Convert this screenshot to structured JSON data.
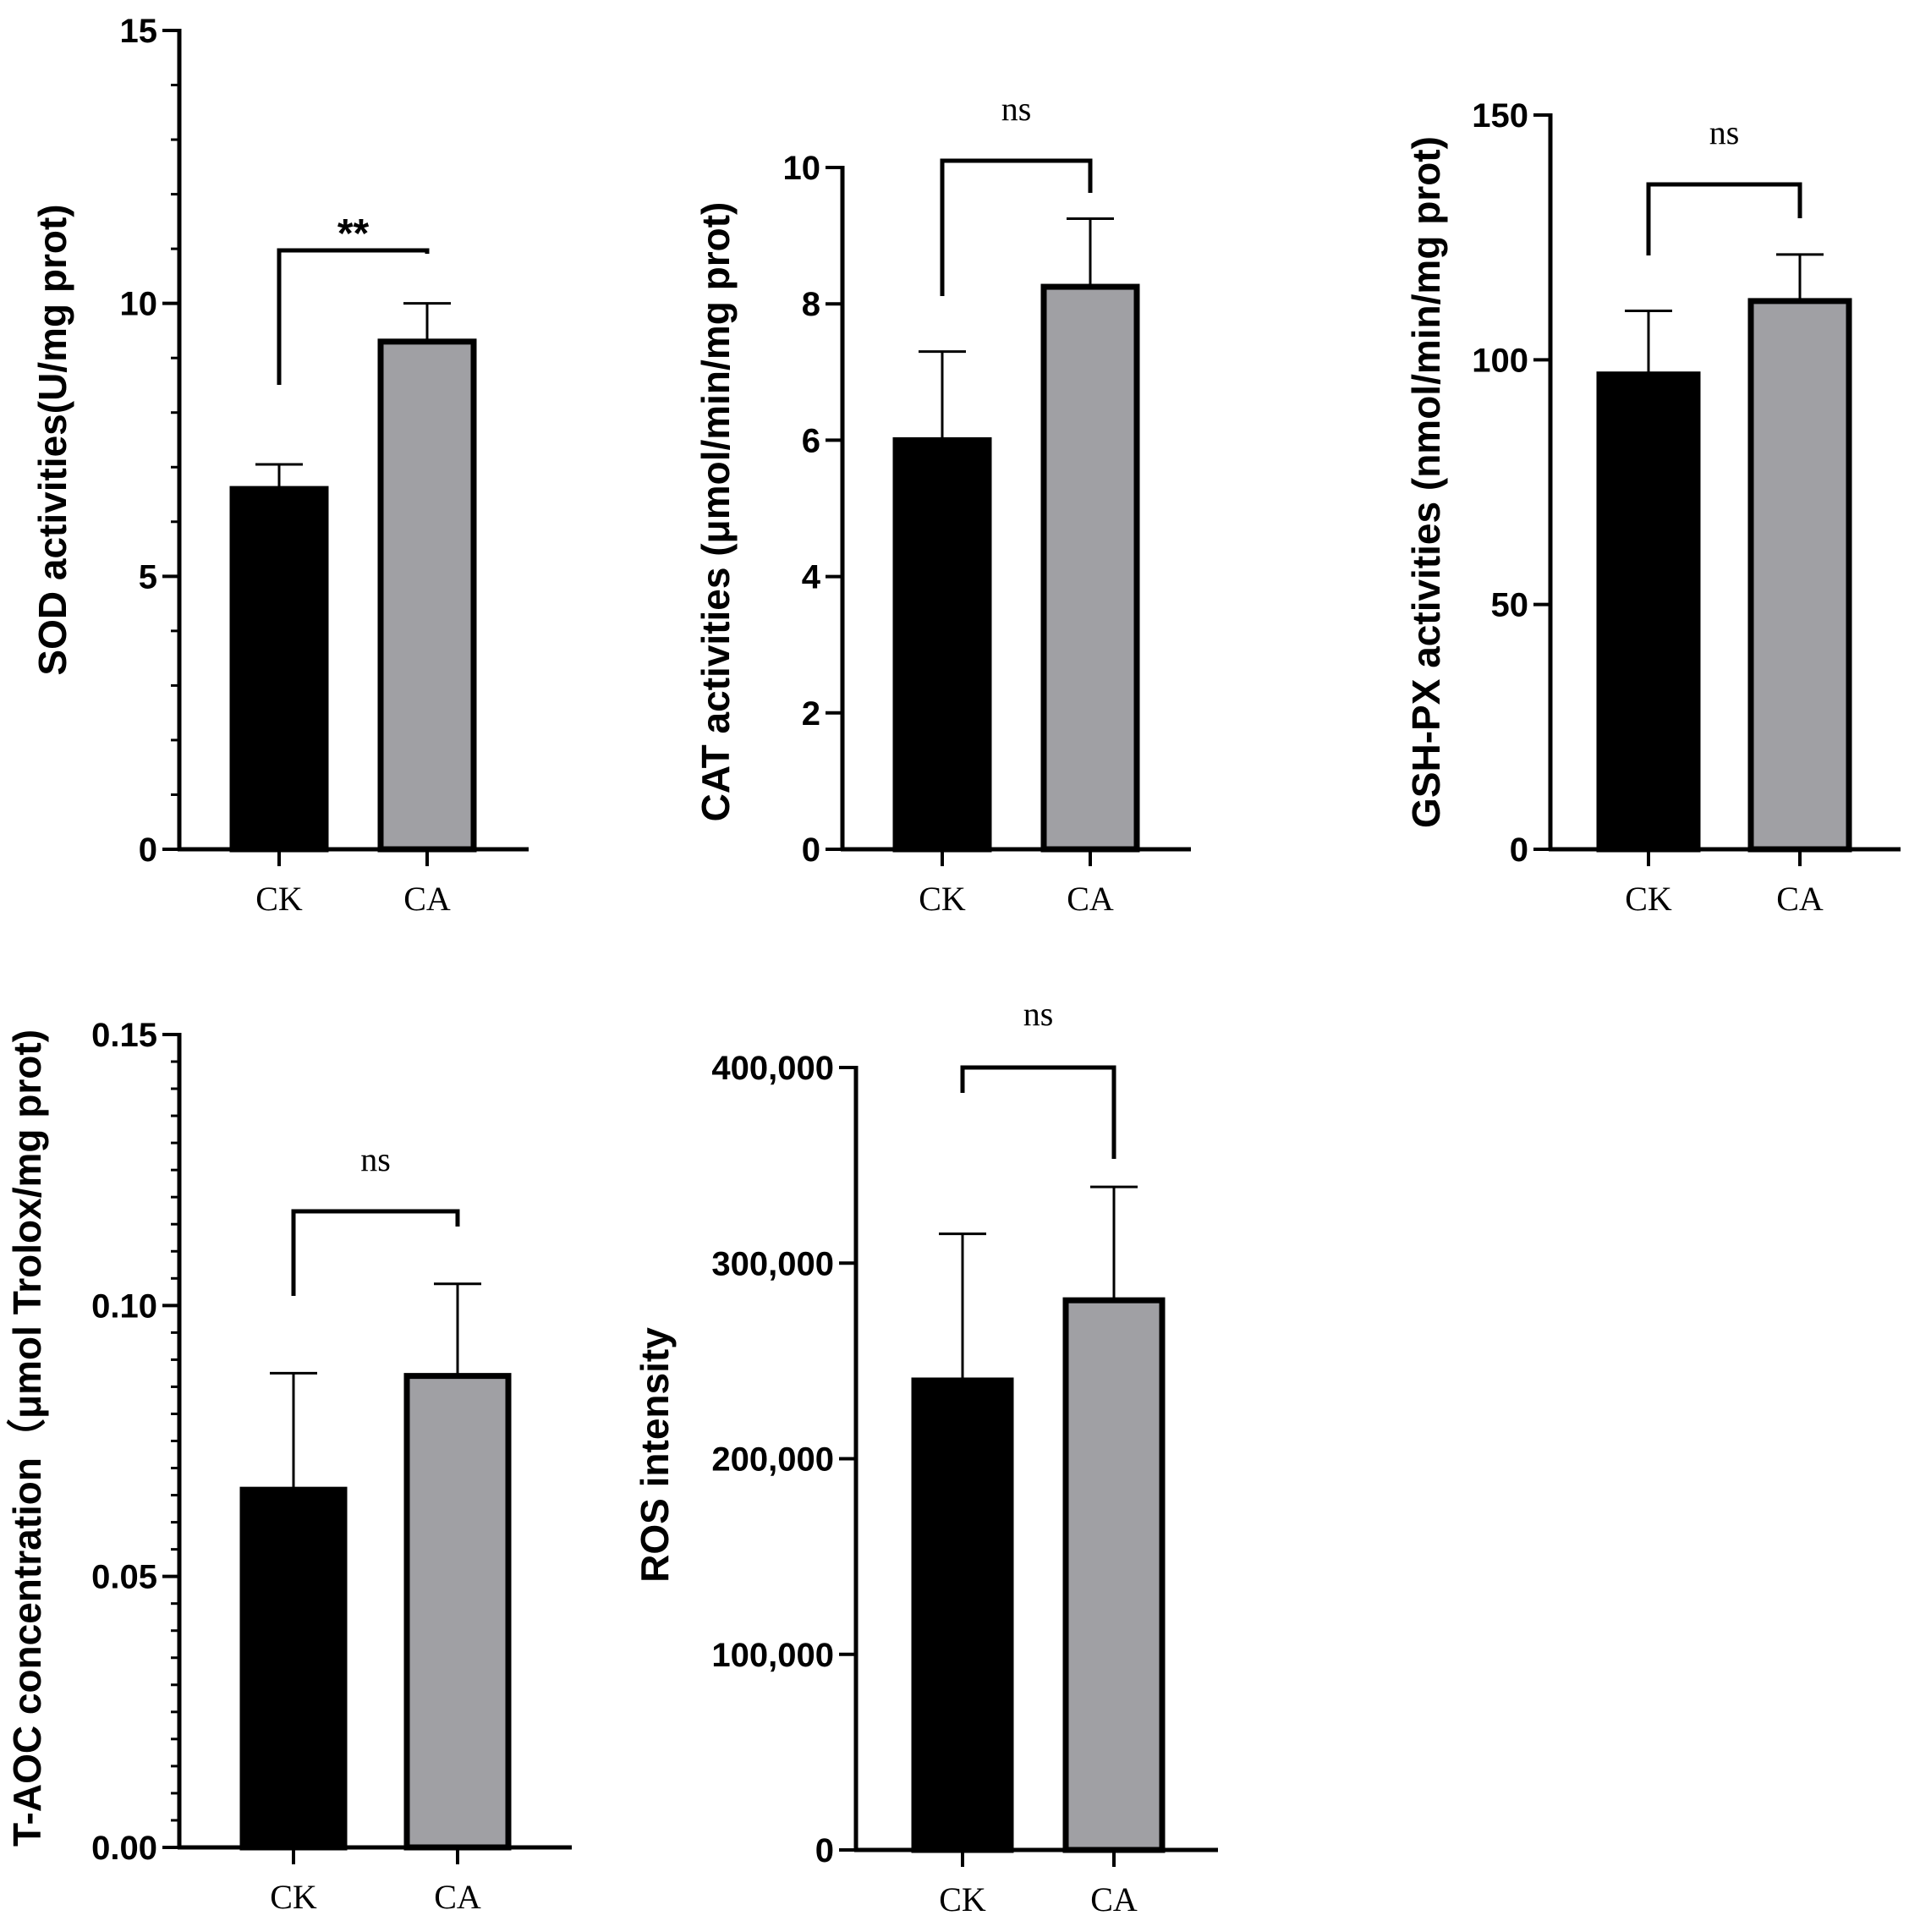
{
  "figure": {
    "panels": 5
  },
  "chart_data": [
    {
      "type": "bar",
      "categories": [
        "CK",
        "CA"
      ],
      "values": [
        6.6,
        9.3
      ],
      "errors": [
        0.45,
        0.7
      ],
      "colors": [
        "#000000",
        "#a0a0a4"
      ],
      "title": "",
      "xlabel": "",
      "ylabel": "SOD activities(U/mg prot)",
      "ylim": [
        0,
        15
      ],
      "major_ticks": [
        0,
        5,
        10,
        15
      ],
      "tick_labels": [
        "0",
        "5",
        "10",
        "15"
      ],
      "minor_step": 1,
      "significance": {
        "label": "**",
        "style": "star"
      }
    },
    {
      "type": "bar",
      "categories": [
        "CK",
        "CA"
      ],
      "values": [
        6.0,
        8.25
      ],
      "errors": [
        1.3,
        1.0
      ],
      "colors": [
        "#000000",
        "#a0a0a4"
      ],
      "title": "",
      "xlabel": "",
      "ylabel": "CAT activities (μmol/min/mg prot)",
      "ylim": [
        0,
        10
      ],
      "major_ticks": [
        0,
        2,
        4,
        6,
        8,
        10
      ],
      "tick_labels": [
        "0",
        "2",
        "4",
        "6",
        "8",
        "10"
      ],
      "minor_step": 0,
      "significance": {
        "label": "ns",
        "style": "ns"
      }
    },
    {
      "type": "bar",
      "categories": [
        "CK",
        "CA"
      ],
      "values": [
        97,
        112
      ],
      "errors": [
        13,
        9.5
      ],
      "colors": [
        "#000000",
        "#a0a0a4"
      ],
      "title": "",
      "xlabel": "",
      "ylabel": "GSH-PX activities (nmol/min/mg prot)",
      "ylim": [
        0,
        150
      ],
      "major_ticks": [
        0,
        50,
        100,
        150
      ],
      "tick_labels": [
        "0",
        "50",
        "100",
        "150"
      ],
      "minor_step": 0,
      "significance": {
        "label": "ns",
        "style": "ns"
      }
    },
    {
      "type": "bar",
      "categories": [
        "CK",
        "CA"
      ],
      "values": [
        0.066,
        0.087
      ],
      "errors": [
        0.0215,
        0.017
      ],
      "colors": [
        "#000000",
        "#a0a0a4"
      ],
      "title": "",
      "xlabel": "",
      "ylabel": "T-AOC concentration（μmol Trolox/mg prot)",
      "ylim": [
        0,
        0.15
      ],
      "major_ticks": [
        0,
        0.05,
        0.1,
        0.15
      ],
      "tick_labels": [
        "0.00",
        "0.05",
        "0.10",
        "0.15"
      ],
      "minor_step": 0.005,
      "significance": {
        "label": "ns",
        "style": "ns"
      }
    },
    {
      "type": "bar",
      "categories": [
        "CK",
        "CA"
      ],
      "values": [
        240000,
        281000
      ],
      "errors": [
        75000,
        58000
      ],
      "colors": [
        "#000000",
        "#a0a0a4"
      ],
      "title": "",
      "xlabel": "",
      "ylabel": "ROS intensity",
      "ylim": [
        0,
        400000
      ],
      "major_ticks": [
        0,
        100000,
        200000,
        300000,
        400000
      ],
      "tick_labels": [
        "0",
        "100,000",
        "200,000",
        "300,000",
        "400,000"
      ],
      "minor_step": 0,
      "significance": {
        "label": "ns",
        "style": "ns"
      }
    }
  ]
}
